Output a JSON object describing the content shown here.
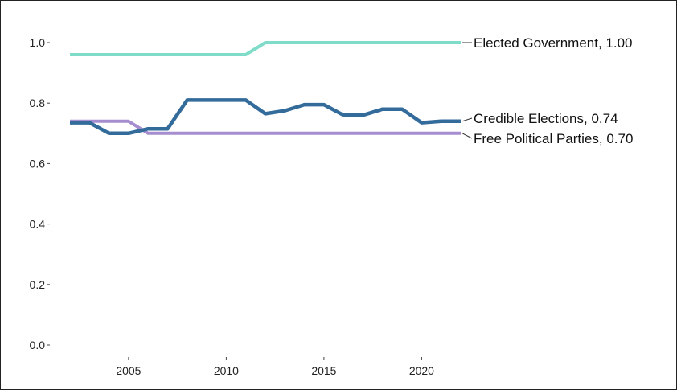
{
  "chart_data": {
    "type": "line",
    "title": "",
    "xlabel": "",
    "ylabel": "",
    "xlim": [
      2002,
      2022
    ],
    "ylim": [
      0,
      1
    ],
    "xticks": [
      2005,
      2010,
      2015,
      2020
    ],
    "yticks": [
      0.0,
      0.2,
      0.4,
      0.6,
      0.8,
      1.0
    ],
    "ytick_labels": [
      "0.0",
      "0.2",
      "0.4",
      "0.6",
      "0.8",
      "1.0"
    ],
    "grid": false,
    "legend": "end-of-line labels",
    "x": [
      2002,
      2003,
      2004,
      2005,
      2006,
      2007,
      2008,
      2009,
      2010,
      2011,
      2012,
      2013,
      2014,
      2015,
      2016,
      2017,
      2018,
      2019,
      2020,
      2021,
      2022
    ],
    "series": [
      {
        "name": "Elected Government",
        "end_label": "Elected Government, 1.00",
        "color": "#7fdcc8",
        "values": [
          0.96,
          0.96,
          0.96,
          0.96,
          0.96,
          0.96,
          0.96,
          0.96,
          0.96,
          0.96,
          1.0,
          1.0,
          1.0,
          1.0,
          1.0,
          1.0,
          1.0,
          1.0,
          1.0,
          1.0,
          1.0
        ]
      },
      {
        "name": "Credible Elections",
        "end_label": "Credible Elections, 0.74",
        "color": "#336b9b",
        "values": [
          0.735,
          0.735,
          0.7,
          0.7,
          0.715,
          0.715,
          0.81,
          0.81,
          0.81,
          0.81,
          0.765,
          0.775,
          0.795,
          0.795,
          0.76,
          0.76,
          0.78,
          0.78,
          0.735,
          0.74,
          0.74
        ]
      },
      {
        "name": "Free Political Parties",
        "end_label": "Free Political Parties, 0.70",
        "color": "#a58dcf",
        "values": [
          0.74,
          0.74,
          0.74,
          0.74,
          0.7,
          0.7,
          0.7,
          0.7,
          0.7,
          0.7,
          0.7,
          0.7,
          0.7,
          0.7,
          0.7,
          0.7,
          0.7,
          0.7,
          0.7,
          0.7,
          0.7
        ]
      }
    ]
  }
}
